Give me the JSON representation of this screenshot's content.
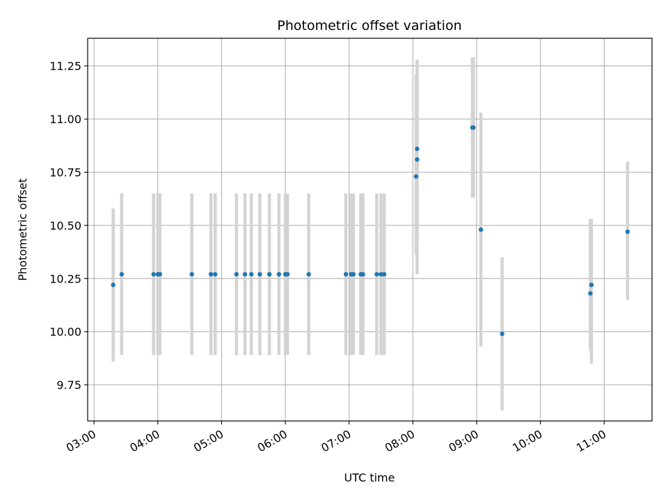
{
  "chart_data": {
    "type": "scatter",
    "title": "Photometric offset variation",
    "xlabel": "UTC time",
    "ylabel": "Photometric offset",
    "xlim": [
      "02:54",
      "11:45"
    ],
    "ylim": [
      9.58,
      11.38
    ],
    "x_ticks": [
      "03:00",
      "04:00",
      "05:00",
      "06:00",
      "07:00",
      "08:00",
      "09:00",
      "10:00",
      "11:00"
    ],
    "y_ticks": [
      "9.75",
      "10.00",
      "10.25",
      "10.50",
      "10.75",
      "11.00",
      "11.25"
    ],
    "grid": true,
    "colors": {
      "marker": "#1f77b4",
      "error_bar": "#d3d3d3",
      "grid": "#b0b0b0"
    },
    "points": [
      {
        "x": "03:18",
        "y": 10.22,
        "lo": 9.86,
        "hi": 10.58
      },
      {
        "x": "03:26",
        "y": 10.27,
        "lo": 9.89,
        "hi": 10.65
      },
      {
        "x": "03:56",
        "y": 10.27,
        "lo": 9.89,
        "hi": 10.65
      },
      {
        "x": "04:00",
        "y": 10.27,
        "lo": 9.89,
        "hi": 10.65
      },
      {
        "x": "04:02",
        "y": 10.27,
        "lo": 9.89,
        "hi": 10.65
      },
      {
        "x": "04:32",
        "y": 10.27,
        "lo": 9.89,
        "hi": 10.65
      },
      {
        "x": "04:50",
        "y": 10.27,
        "lo": 9.89,
        "hi": 10.65
      },
      {
        "x": "04:54",
        "y": 10.27,
        "lo": 9.89,
        "hi": 10.65
      },
      {
        "x": "05:14",
        "y": 10.27,
        "lo": 9.89,
        "hi": 10.65
      },
      {
        "x": "05:22",
        "y": 10.27,
        "lo": 9.89,
        "hi": 10.65
      },
      {
        "x": "05:28",
        "y": 10.27,
        "lo": 9.89,
        "hi": 10.65
      },
      {
        "x": "05:36",
        "y": 10.27,
        "lo": 9.89,
        "hi": 10.65
      },
      {
        "x": "05:45",
        "y": 10.27,
        "lo": 9.89,
        "hi": 10.65
      },
      {
        "x": "05:54",
        "y": 10.27,
        "lo": 9.89,
        "hi": 10.65
      },
      {
        "x": "06:00",
        "y": 10.27,
        "lo": 9.89,
        "hi": 10.65
      },
      {
        "x": "06:02",
        "y": 10.27,
        "lo": 9.89,
        "hi": 10.65
      },
      {
        "x": "06:22",
        "y": 10.27,
        "lo": 9.89,
        "hi": 10.65
      },
      {
        "x": "06:57",
        "y": 10.27,
        "lo": 9.89,
        "hi": 10.65
      },
      {
        "x": "07:02",
        "y": 10.27,
        "lo": 9.89,
        "hi": 10.65
      },
      {
        "x": "07:04",
        "y": 10.27,
        "lo": 9.89,
        "hi": 10.65
      },
      {
        "x": "07:11",
        "y": 10.27,
        "lo": 9.89,
        "hi": 10.65
      },
      {
        "x": "07:13",
        "y": 10.27,
        "lo": 9.89,
        "hi": 10.65
      },
      {
        "x": "07:26",
        "y": 10.27,
        "lo": 9.89,
        "hi": 10.65
      },
      {
        "x": "07:30",
        "y": 10.27,
        "lo": 9.89,
        "hi": 10.65
      },
      {
        "x": "07:33",
        "y": 10.27,
        "lo": 9.89,
        "hi": 10.65
      },
      {
        "x": "08:03",
        "y": 10.73,
        "lo": 10.36,
        "hi": 11.21
      },
      {
        "x": "08:04",
        "y": 10.81,
        "lo": 10.27,
        "hi": 11.27
      },
      {
        "x": "08:04",
        "y": 10.86,
        "lo": 10.42,
        "hi": 11.28
      },
      {
        "x": "08:56",
        "y": 10.96,
        "lo": 10.63,
        "hi": 11.29
      },
      {
        "x": "08:57",
        "y": 10.96,
        "lo": 10.63,
        "hi": 11.29
      },
      {
        "x": "09:04",
        "y": 10.48,
        "lo": 9.93,
        "hi": 11.03
      },
      {
        "x": "09:24",
        "y": 9.99,
        "lo": 9.63,
        "hi": 10.35
      },
      {
        "x": "10:47",
        "y": 10.18,
        "lo": 9.91,
        "hi": 10.53
      },
      {
        "x": "10:48",
        "y": 10.22,
        "lo": 9.85,
        "hi": 10.53
      },
      {
        "x": "11:22",
        "y": 10.47,
        "lo": 10.15,
        "hi": 10.8
      }
    ]
  }
}
